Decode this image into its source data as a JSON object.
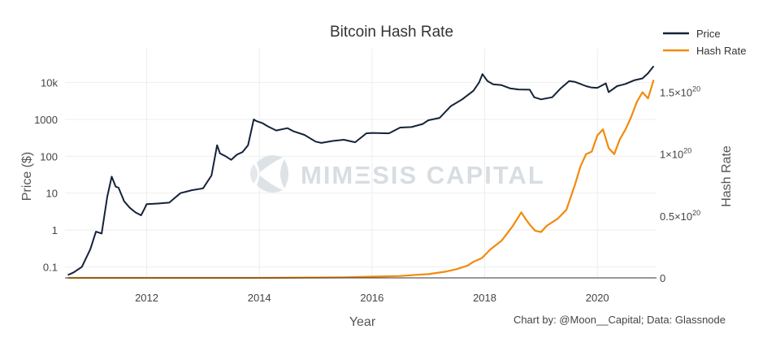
{
  "watermark": {
    "text": "MIMΞSIS CAPITAL"
  },
  "chart_data": {
    "type": "line",
    "title": "Bitcoin Hash Rate",
    "xlabel": "Year",
    "ylabel": "Price ($)",
    "y2label": "Hash Rate",
    "credit": "Chart by: @Moon__Capital; Data: Glassnode",
    "xlim": [
      2010.55,
      2021.05
    ],
    "ylim_log": [
      0.05,
      30000
    ],
    "y_scale": "log",
    "y2lim": [
      0,
      1.72e+20
    ],
    "legend": "top-right",
    "grid": true,
    "x_ticks": [
      {
        "value": 2012,
        "label": "2012"
      },
      {
        "value": 2014,
        "label": "2014"
      },
      {
        "value": 2016,
        "label": "2016"
      },
      {
        "value": 2018,
        "label": "2018"
      },
      {
        "value": 2020,
        "label": "2020"
      }
    ],
    "y_ticks": [
      {
        "value": 0.1,
        "label": "0.1"
      },
      {
        "value": 1,
        "label": "1"
      },
      {
        "value": 10,
        "label": "10"
      },
      {
        "value": 100,
        "label": "100"
      },
      {
        "value": 1000,
        "label": "1000"
      },
      {
        "value": 10000,
        "label": "10k"
      }
    ],
    "y2_ticks": [
      {
        "value": 0,
        "base": "0",
        "exp": ""
      },
      {
        "value": 5e+19,
        "base": "0.5×10",
        "exp": "20"
      },
      {
        "value": 1e+20,
        "base": "1×10",
        "exp": "20"
      },
      {
        "value": 1.5e+20,
        "base": "1.5×10",
        "exp": "20"
      }
    ],
    "series": [
      {
        "name": "Price",
        "color": "#152238",
        "axis": "left",
        "x": [
          2010.6,
          2010.7,
          2010.85,
          2011.0,
          2011.1,
          2011.2,
          2011.3,
          2011.38,
          2011.45,
          2011.5,
          2011.6,
          2011.7,
          2011.8,
          2011.9,
          2011.95,
          2012.0,
          2012.2,
          2012.4,
          2012.6,
          2012.8,
          2013.0,
          2013.15,
          2013.25,
          2013.3,
          2013.4,
          2013.5,
          2013.6,
          2013.7,
          2013.8,
          2013.9,
          2013.95,
          2014.05,
          2014.15,
          2014.3,
          2014.5,
          2014.6,
          2014.8,
          2015.0,
          2015.1,
          2015.3,
          2015.5,
          2015.7,
          2015.9,
          2016.0,
          2016.3,
          2016.5,
          2016.7,
          2016.9,
          2017.0,
          2017.2,
          2017.4,
          2017.6,
          2017.8,
          2017.9,
          2017.96,
          2018.05,
          2018.15,
          2018.3,
          2018.45,
          2018.6,
          2018.8,
          2018.88,
          2019.0,
          2019.2,
          2019.35,
          2019.5,
          2019.6,
          2019.8,
          2019.9,
          2020.0,
          2020.15,
          2020.2,
          2020.35,
          2020.5,
          2020.65,
          2020.8,
          2020.9,
          2021.0
        ],
        "values": [
          0.06,
          0.07,
          0.1,
          0.3,
          0.9,
          0.8,
          8,
          28,
          15,
          14,
          6,
          4,
          3,
          2.5,
          3.5,
          5,
          5.2,
          5.5,
          10,
          12,
          13.5,
          30,
          200,
          120,
          100,
          80,
          110,
          130,
          200,
          1000,
          900,
          800,
          650,
          500,
          580,
          480,
          380,
          250,
          230,
          260,
          280,
          240,
          420,
          430,
          420,
          600,
          620,
          750,
          950,
          1100,
          2300,
          3500,
          6000,
          10000,
          17000,
          11000,
          9000,
          8500,
          7000,
          6500,
          6400,
          4000,
          3500,
          4000,
          7000,
          11000,
          10500,
          8000,
          7300,
          7200,
          9500,
          5500,
          8000,
          9200,
          11500,
          13000,
          18000,
          28000
        ]
      },
      {
        "name": "Hash Rate",
        "color": "#f28a0c",
        "axis": "right",
        "x": [
          2010.6,
          2014.0,
          2015.0,
          2015.5,
          2016.0,
          2016.5,
          2016.8,
          2017.0,
          2017.3,
          2017.5,
          2017.7,
          2017.8,
          2017.95,
          2018.1,
          2018.3,
          2018.5,
          2018.65,
          2018.72,
          2018.8,
          2018.9,
          2019.0,
          2019.1,
          2019.3,
          2019.45,
          2019.6,
          2019.7,
          2019.8,
          2019.9,
          2020.0,
          2020.1,
          2020.2,
          2020.3,
          2020.4,
          2020.5,
          2020.6,
          2020.7,
          2020.8,
          2020.9,
          2021.0
        ],
        "values": [
          0,
          100000000000000.0,
          2.5e+17,
          4e+17,
          1e+18,
          1.5e+18,
          2.5e+18,
          3e+18,
          5e+18,
          7e+18,
          1e+19,
          1.3e+19,
          1.6e+19,
          2.3e+19,
          3e+19,
          4.2e+19,
          5.3e+19,
          4.8e+19,
          4.3e+19,
          3.8e+19,
          3.7e+19,
          4.2e+19,
          4.8e+19,
          5.5e+19,
          7.5e+19,
          9e+19,
          1e+20,
          1.02e+20,
          1.15e+20,
          1.2e+20,
          1.05e+20,
          1e+20,
          1.12e+20,
          1.2e+20,
          1.3e+20,
          1.42e+20,
          1.5e+20,
          1.45e+20,
          1.6e+20
        ]
      }
    ]
  }
}
